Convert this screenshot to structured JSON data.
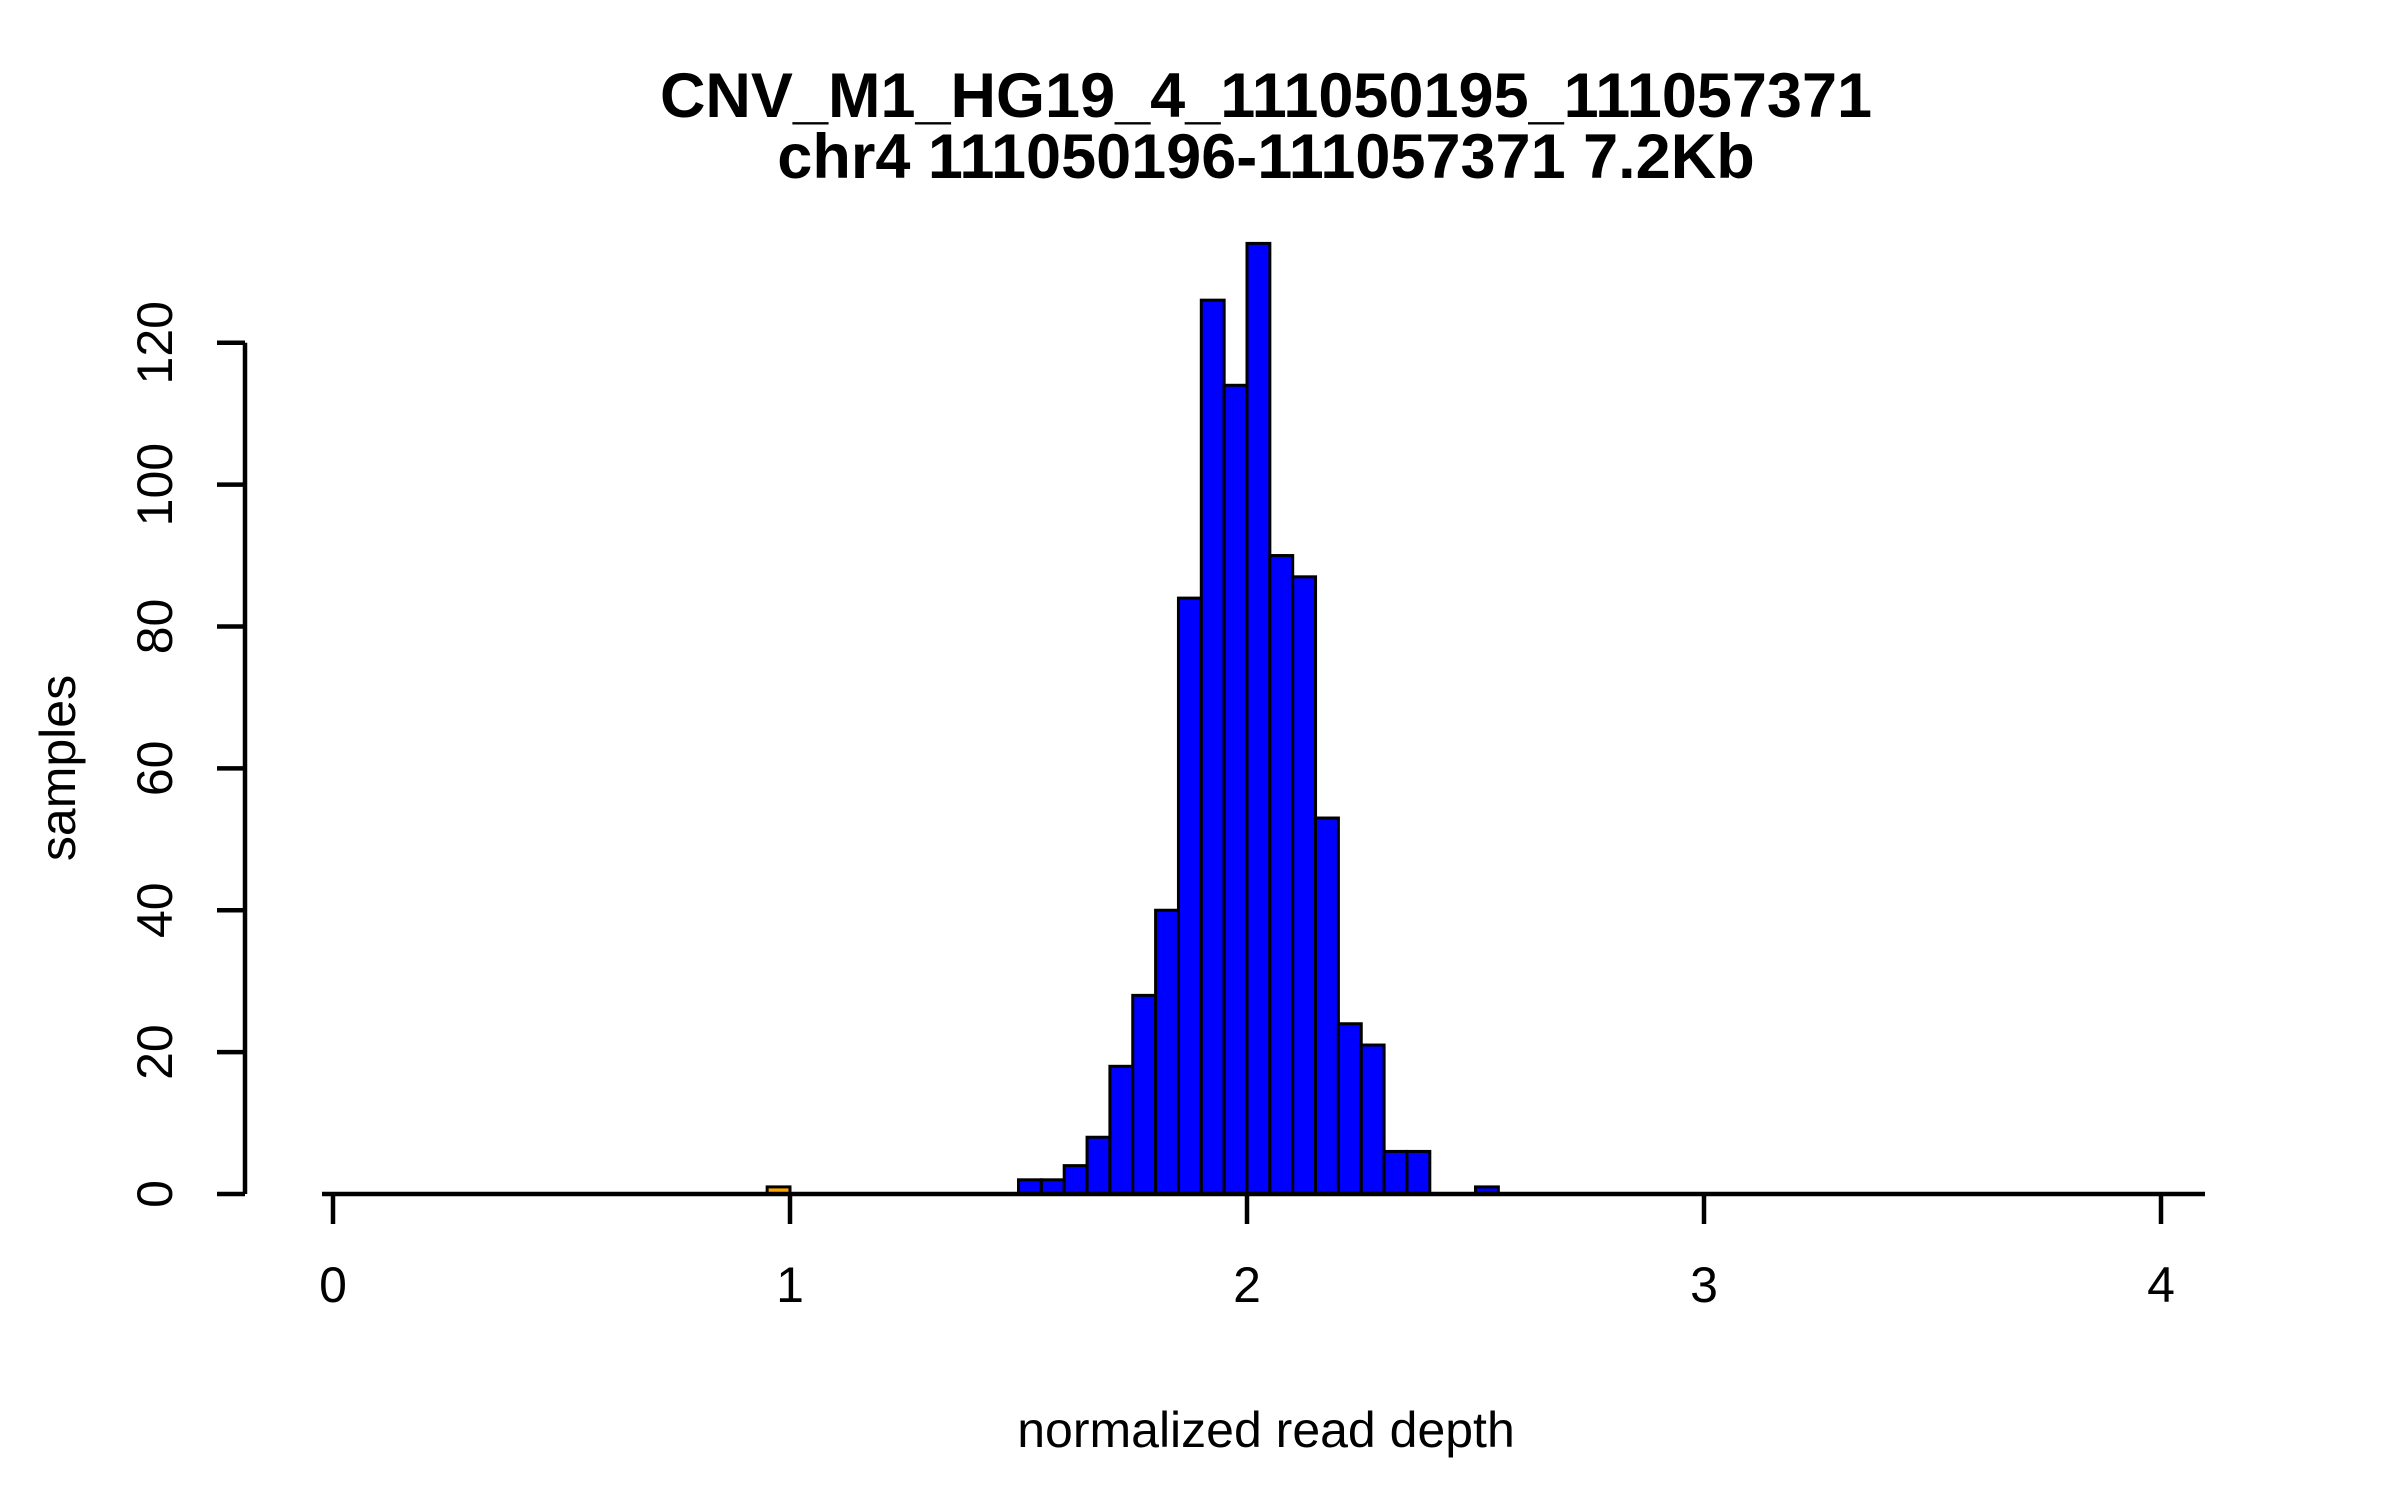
{
  "chart_data": {
    "type": "bar",
    "subtype": "histogram",
    "title": "CNV_M1_HG19_4_111050195_111057371",
    "subtitle": "chr4 111050196-111057371 7.2Kb",
    "xlabel": "normalized read depth",
    "ylabel": "samples",
    "x_ticks": [
      0,
      1,
      2,
      3,
      4
    ],
    "y_ticks": [
      0,
      20,
      40,
      60,
      80,
      100,
      120
    ],
    "xlim": [
      0,
      4
    ],
    "ylim": [
      0,
      134
    ],
    "bin_width": 0.05,
    "grid": "off",
    "legend": "none",
    "colors": {
      "bar_fill": "#0000FF",
      "highlight_fill": "#FFA500",
      "bar_stroke": "#000000",
      "axis_color": "#000000",
      "background": "#FFFFFF"
    },
    "bins": [
      {
        "start": 0.95,
        "count": 1,
        "fill": "#FFA500"
      },
      {
        "start": 1.5,
        "count": 2
      },
      {
        "start": 1.55,
        "count": 2
      },
      {
        "start": 1.6,
        "count": 4
      },
      {
        "start": 1.65,
        "count": 8
      },
      {
        "start": 1.7,
        "count": 18
      },
      {
        "start": 1.75,
        "count": 28
      },
      {
        "start": 1.8,
        "count": 40
      },
      {
        "start": 1.85,
        "count": 84
      },
      {
        "start": 1.9,
        "count": 126
      },
      {
        "start": 1.95,
        "count": 114
      },
      {
        "start": 2.0,
        "count": 134
      },
      {
        "start": 2.05,
        "count": 90
      },
      {
        "start": 2.1,
        "count": 87
      },
      {
        "start": 2.15,
        "count": 53
      },
      {
        "start": 2.2,
        "count": 24
      },
      {
        "start": 2.25,
        "count": 21
      },
      {
        "start": 2.3,
        "count": 6
      },
      {
        "start": 2.35,
        "count": 6
      },
      {
        "start": 2.4,
        "count": 0
      },
      {
        "start": 2.45,
        "count": 0
      },
      {
        "start": 2.5,
        "count": 1
      }
    ]
  }
}
